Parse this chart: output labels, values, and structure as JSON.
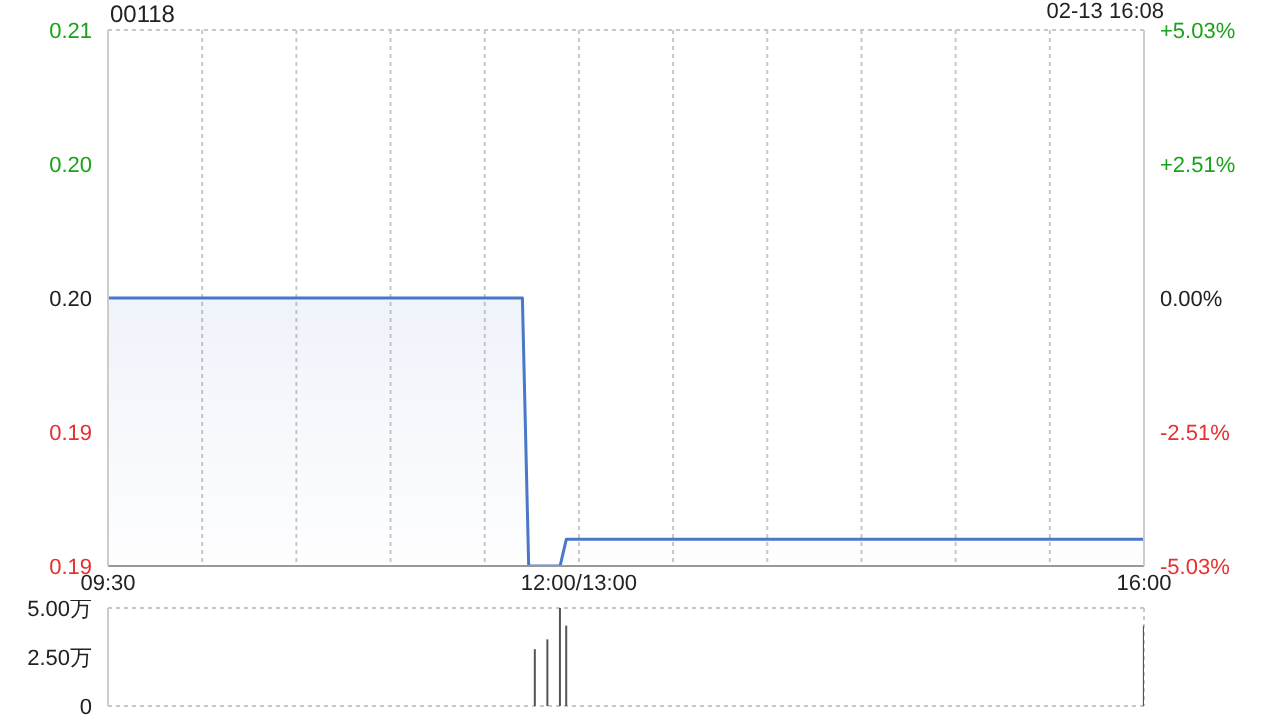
{
  "chart_data": {
    "type": "area",
    "title": "00118",
    "annotations": [
      "02-13 16:08"
    ],
    "categories": [
      "09:30",
      null,
      null,
      null,
      null,
      null,
      null,
      null,
      null,
      null,
      null,
      null,
      null,
      null,
      null,
      null,
      null,
      null,
      null,
      null,
      null,
      null,
      null,
      null,
      null,
      null,
      null,
      null,
      null,
      null,
      null,
      null,
      null,
      null,
      null,
      null,
      null,
      null,
      null,
      null,
      null,
      null,
      null,
      null,
      null,
      null,
      null,
      null,
      null,
      null,
      null,
      null,
      null,
      null,
      null,
      null,
      null,
      null,
      null,
      null,
      null,
      null,
      null,
      null,
      null,
      null,
      null,
      null,
      null,
      null,
      null,
      null,
      null,
      null,
      null,
      "12:00/13:00",
      null,
      null,
      null,
      null,
      null,
      null,
      null,
      null,
      null,
      null,
      null,
      null,
      null,
      null,
      null,
      null,
      null,
      null,
      null,
      null,
      null,
      null,
      null,
      null,
      null,
      null,
      null,
      null,
      null,
      null,
      null,
      null,
      null,
      null,
      null,
      null,
      null,
      null,
      null,
      null,
      null,
      null,
      null,
      null,
      null,
      null,
      null,
      null,
      null,
      null,
      null,
      null,
      null,
      null,
      null,
      null,
      null,
      null,
      null,
      null,
      null,
      null,
      null,
      null,
      null,
      null,
      null,
      null,
      null,
      null,
      null,
      null,
      null,
      null,
      null,
      null,
      null,
      null,
      null,
      null,
      null,
      null,
      null,
      null,
      null,
      null,
      null,
      null,
      null,
      "16:00"
    ],
    "series": [
      {
        "color": "#4a78c8",
        "values": [
          0.199,
          0.199,
          0.199,
          0.199,
          0.199,
          0.199,
          0.199,
          0.199,
          0.199,
          0.199,
          0.199,
          0.199,
          0.199,
          0.199,
          0.199,
          0.199,
          0.199,
          0.199,
          0.199,
          0.199,
          0.199,
          0.199,
          0.199,
          0.199,
          0.199,
          0.199,
          0.199,
          0.199,
          0.199,
          0.199,
          0.199,
          0.199,
          0.199,
          0.199,
          0.199,
          0.199,
          0.199,
          0.199,
          0.199,
          0.199,
          0.199,
          0.199,
          0.199,
          0.199,
          0.199,
          0.199,
          0.199,
          0.199,
          0.199,
          0.199,
          0.199,
          0.199,
          0.199,
          0.199,
          0.199,
          0.199,
          0.199,
          0.199,
          0.199,
          0.199,
          0.199,
          0.199,
          0.199,
          0.199,
          0.199,
          0.199,
          0.199,
          0.189,
          0.189,
          0.189,
          0.189,
          0.189,
          0.189,
          0.19,
          0.19,
          0.19,
          0.19,
          0.19,
          0.19,
          0.19,
          0.19,
          0.19,
          0.19,
          0.19,
          0.19,
          0.19,
          0.19,
          0.19,
          0.19,
          0.19,
          0.19,
          0.19,
          0.19,
          0.19,
          0.19,
          0.19,
          0.19,
          0.19,
          0.19,
          0.19,
          0.19,
          0.19,
          0.19,
          0.19,
          0.19,
          0.19,
          0.19,
          0.19,
          0.19,
          0.19,
          0.19,
          0.19,
          0.19,
          0.19,
          0.19,
          0.19,
          0.19,
          0.19,
          0.19,
          0.19,
          0.19,
          0.19,
          0.19,
          0.19,
          0.19,
          0.19,
          0.19,
          0.19,
          0.19,
          0.19,
          0.19,
          0.19,
          0.19,
          0.19,
          0.19,
          0.19,
          0.19,
          0.19,
          0.19,
          0.19,
          0.19,
          0.19,
          0.19,
          0.19,
          0.19,
          0.19,
          0.19,
          0.19,
          0.19,
          0.19,
          0.19,
          0.19,
          0.19,
          0.19,
          0.19,
          0.19,
          0.19,
          0.19,
          0.19,
          0.19,
          0.19,
          0.19,
          0.19,
          0.19,
          0.19,
          0.19
        ]
      },
      {
        "type": "bar",
        "axis": "y3",
        "color": "#555555",
        "values": [
          null,
          null,
          null,
          null,
          null,
          null,
          null,
          null,
          null,
          null,
          null,
          null,
          null,
          null,
          null,
          null,
          null,
          null,
          null,
          null,
          null,
          null,
          null,
          null,
          null,
          null,
          null,
          null,
          null,
          null,
          null,
          null,
          null,
          null,
          null,
          null,
          null,
          null,
          null,
          null,
          null,
          null,
          null,
          null,
          null,
          null,
          null,
          null,
          null,
          null,
          null,
          null,
          null,
          null,
          null,
          null,
          null,
          null,
          null,
          null,
          null,
          null,
          null,
          null,
          null,
          null,
          null,
          null,
          2.9,
          null,
          3.4,
          null,
          5.0,
          4.1,
          null,
          null,
          null,
          null,
          null,
          null,
          null,
          null,
          null,
          null,
          null,
          null,
          null,
          null,
          null,
          null,
          null,
          null,
          null,
          null,
          null,
          null,
          null,
          null,
          null,
          null,
          null,
          null,
          null,
          null,
          null,
          null,
          null,
          null,
          null,
          null,
          null,
          null,
          null,
          null,
          null,
          null,
          null,
          null,
          null,
          null,
          null,
          null,
          null,
          null,
          null,
          null,
          null,
          null,
          null,
          null,
          null,
          null,
          null,
          null,
          null,
          null,
          null,
          null,
          null,
          null,
          null,
          null,
          null,
          null,
          null,
          null,
          null,
          null,
          null,
          null,
          null,
          null,
          null,
          null,
          null,
          null,
          null,
          null,
          null,
          null,
          null,
          null,
          null,
          null,
          null,
          4.1
        ]
      }
    ],
    "ylim": [
      0.189,
      0.209
    ],
    "yticks": [
      {
        "value": 0.189,
        "label": "0.19"
      },
      {
        "value": 0.194,
        "label": "0.19"
      },
      {
        "value": 0.199,
        "label": "0.20"
      },
      {
        "value": 0.204,
        "label": "0.20"
      },
      {
        "value": 0.209,
        "label": "0.21"
      }
    ],
    "y2lim": [
      -5.03,
      5.03
    ],
    "y2ticks": [
      {
        "value": -5.03,
        "label": "-5.03%"
      },
      {
        "value": -2.51,
        "label": "-2.51%"
      },
      {
        "value": 0,
        "label": "0.00%"
      },
      {
        "value": 2.51,
        "label": "+2.51%"
      },
      {
        "value": 5.03,
        "label": "+5.03%"
      }
    ],
    "y3lim": [
      0,
      5
    ],
    "y3ticks": [
      0,
      {
        "value": 2.5,
        "label": "2.50万"
      },
      {
        "value": 5,
        "label": "5.00万"
      }
    ],
    "grid": true,
    "legend": false,
    "marker": "none",
    "line_style": "solid"
  }
}
